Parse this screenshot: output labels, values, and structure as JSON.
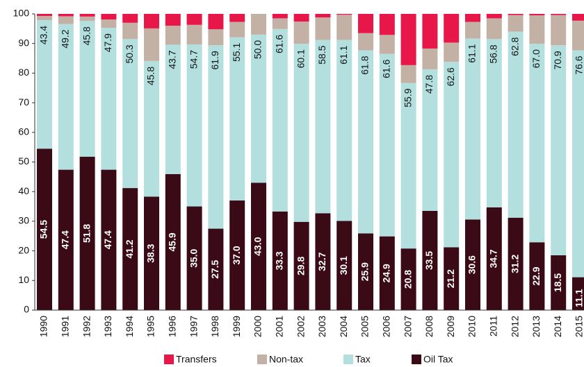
{
  "chart_data": {
    "type": "stacked_bar",
    "categories": [
      "1990",
      "1991",
      "1992",
      "1993",
      "1994",
      "1995",
      "1996",
      "1997",
      "1998",
      "1999",
      "2000",
      "2001",
      "2002",
      "2003",
      "2004",
      "2005",
      "2006",
      "2007",
      "2008",
      "2009",
      "2010",
      "2011",
      "2012",
      "2013",
      "2014",
      "2015"
    ],
    "series": [
      {
        "name": "Oil Tax",
        "color": "#3a0a16",
        "values": [
          54.5,
          47.4,
          51.8,
          47.4,
          41.2,
          38.3,
          45.9,
          35.0,
          27.5,
          37.0,
          43.0,
          33.3,
          29.8,
          32.7,
          30.1,
          25.9,
          24.9,
          20.8,
          33.5,
          21.2,
          30.6,
          34.7,
          31.2,
          22.9,
          18.5,
          11.1
        ],
        "value_labels": [
          "54.5",
          "47.4",
          "51.8",
          "47.4",
          "41.2",
          "38.3",
          "45.9",
          "35.0",
          "27.5",
          "37.0",
          "43.0",
          "33.3",
          "29.8",
          "32.7",
          "30.1",
          "25.9",
          "24.9",
          "20.8",
          "33.5",
          "21.2",
          "30.6",
          "34.7",
          "31.2",
          "22.9",
          "18.5",
          "11.1"
        ]
      },
      {
        "name": "Tax",
        "color": "#b3e0de",
        "values": [
          43.4,
          49.2,
          45.8,
          47.9,
          50.3,
          45.8,
          43.7,
          54.7,
          61.9,
          55.1,
          50.0,
          61.6,
          60.1,
          58.5,
          61.1,
          61.8,
          61.6,
          55.9,
          47.8,
          62.6,
          61.1,
          56.8,
          62.8,
          67.0,
          70.9,
          76.6
        ],
        "value_labels": [
          "43.4",
          "49.2",
          "45.8",
          "47.9",
          "50.3",
          "45.8",
          "43.7",
          "54.7",
          "61.9",
          "55.1",
          "50.0",
          "61.6",
          "60.1",
          "58.5",
          "61.1",
          "61.8",
          "61.6",
          "55.9",
          "47.8",
          "62.6",
          "61.1",
          "56.8",
          "62.8",
          "67.0",
          "70.9",
          "76.6"
        ]
      },
      {
        "name": "Non-tax",
        "color": "#c4b1a6",
        "values": [
          1.4,
          2.6,
          1.5,
          2.8,
          5.5,
          11.0,
          6.4,
          6.6,
          5.4,
          5.2,
          7.0,
          3.6,
          7.5,
          7.6,
          8.5,
          5.8,
          6.4,
          6.0,
          7.0,
          6.5,
          5.6,
          7.0,
          5.6,
          9.6,
          10.2,
          10.0
        ]
      },
      {
        "name": "Transfers",
        "color": "#e8174a",
        "values": [
          0.7,
          0.8,
          0.9,
          1.9,
          3.0,
          4.9,
          4.0,
          3.7,
          5.2,
          2.7,
          0,
          1.5,
          2.6,
          1.2,
          0.3,
          6.5,
          7.1,
          17.3,
          11.7,
          9.7,
          2.7,
          1.5,
          0.4,
          0.5,
          0.4,
          2.3
        ]
      }
    ],
    "legend_order": [
      "Transfers",
      "Non-tax",
      "Tax",
      "Oil Tax"
    ],
    "ylim": [
      0,
      100
    ],
    "yticks": [
      0,
      10,
      20,
      30,
      40,
      50,
      60,
      70,
      80,
      90,
      100
    ]
  }
}
